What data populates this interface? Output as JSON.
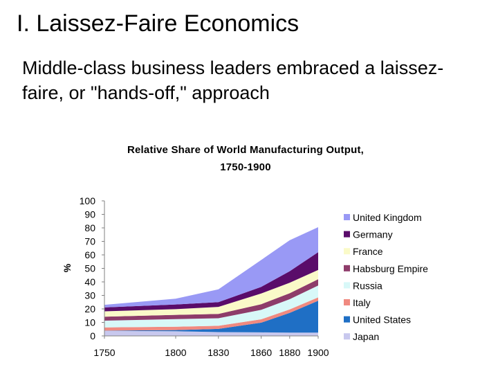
{
  "slide": {
    "title": "I. Laissez-Faire Economics",
    "subtitle": "Middle-class business leaders embraced a laissez-faire, or \"hands-off,\" approach"
  },
  "chart_data": {
    "type": "area",
    "stacked": true,
    "title_lines": [
      "Relative Share of World Manufacturing Output,",
      "1750-1900"
    ],
    "ylabel": "%",
    "ylim": [
      0,
      100
    ],
    "yticks": [
      0,
      10,
      20,
      30,
      40,
      50,
      60,
      70,
      80,
      90,
      100
    ],
    "x": [
      1750,
      1800,
      1830,
      1860,
      1880,
      1900
    ],
    "legend_position": "right",
    "series": [
      {
        "name": "Japan",
        "color": "#c8c8ee",
        "values": [
          3.8,
          3.5,
          2.8,
          2.6,
          2.4,
          2.4
        ]
      },
      {
        "name": "United States",
        "color": "#1f6fc5",
        "values": [
          0.1,
          0.8,
          2.4,
          7.2,
          14.7,
          23.6
        ]
      },
      {
        "name": "Italy",
        "color": "#f08a80",
        "values": [
          2.4,
          2.5,
          2.3,
          2.5,
          2.5,
          2.5
        ]
      },
      {
        "name": "Russia",
        "color": "#d8f8f8",
        "values": [
          5.0,
          5.6,
          5.6,
          7.0,
          7.6,
          8.8
        ]
      },
      {
        "name": "Habsburg Empire",
        "color": "#8e3c6a",
        "values": [
          2.9,
          3.2,
          3.2,
          4.2,
          4.4,
          4.7
        ]
      },
      {
        "name": "France",
        "color": "#fafac8",
        "values": [
          4.0,
          4.2,
          5.2,
          7.9,
          7.8,
          6.8
        ]
      },
      {
        "name": "Germany",
        "color": "#5a0c6a",
        "values": [
          2.9,
          3.5,
          3.5,
          4.9,
          8.5,
          13.2
        ]
      },
      {
        "name": "United Kingdom",
        "color": "#9999f5",
        "values": [
          1.9,
          4.3,
          9.5,
          19.9,
          22.9,
          18.5
        ]
      }
    ]
  }
}
